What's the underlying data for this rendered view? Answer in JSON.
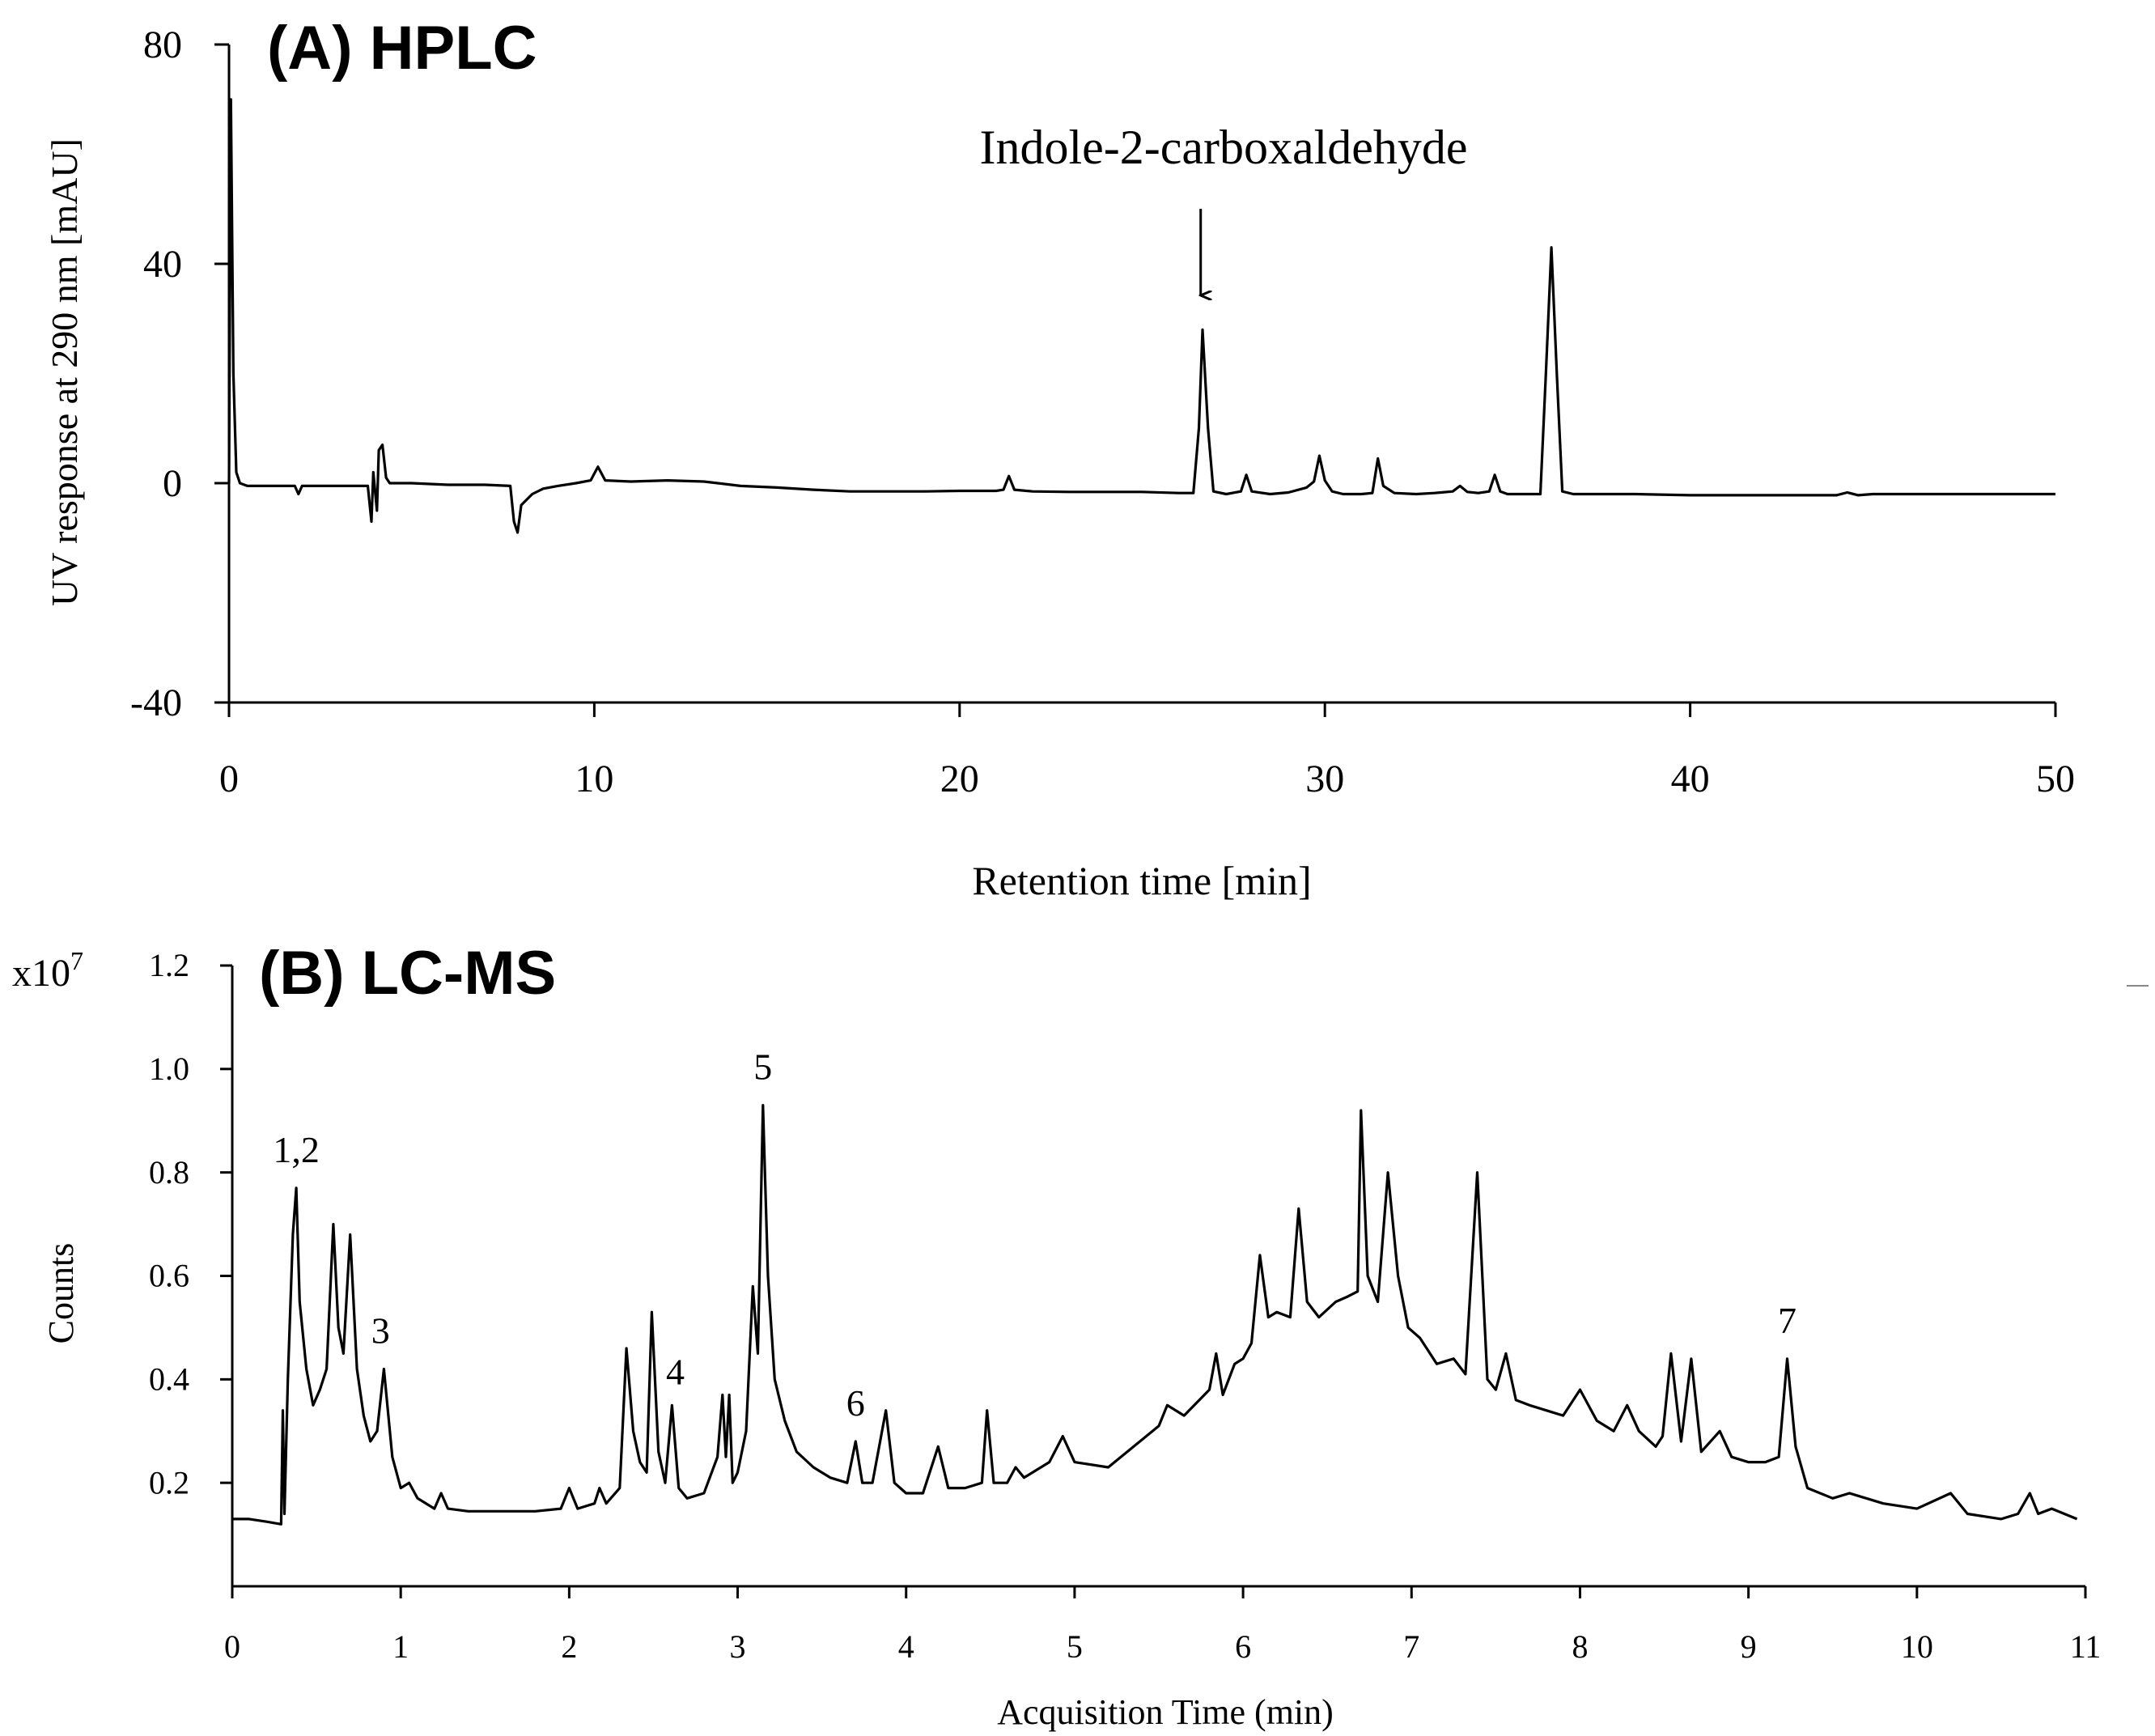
{
  "chart_data": [
    {
      "type": "line",
      "panel_title": "(A) HPLC",
      "xlabel": "Retention time [min]",
      "ylabel": "UV response at 290 nm [mAU]",
      "xlim": [
        0,
        50
      ],
      "ylim": [
        -40,
        80
      ],
      "x_ticks": [
        0,
        10,
        20,
        30,
        40,
        50
      ],
      "y_ticks": [
        80,
        40,
        0,
        -40
      ],
      "grid": false,
      "annotation": {
        "text": "Indole-2-carboxaldehyde",
        "x": 26.6,
        "arrow": true
      },
      "series": [
        {
          "x": [
            0,
            0.05,
            0.12,
            0.2,
            0.3,
            0.5,
            1,
            1.8,
            1.9,
            2.0,
            2.3,
            3,
            3.8,
            3.9,
            3.95,
            4.05,
            4.1,
            4.2,
            4.3,
            4.4,
            4.6,
            5,
            6,
            7,
            7.7,
            7.8,
            7.9,
            8.0,
            8.3,
            8.6,
            9,
            9.5,
            9.9,
            10.1,
            10.3,
            11,
            12,
            13,
            14,
            15,
            16,
            17,
            18,
            19,
            20,
            21,
            21.2,
            21.35,
            21.5,
            22,
            23,
            24,
            25,
            26,
            26.4,
            26.55,
            26.65,
            26.8,
            26.95,
            27.3,
            27.7,
            27.85,
            28.0,
            28.5,
            29,
            29.5,
            29.7,
            29.85,
            30.0,
            30.2,
            30.5,
            31,
            31.3,
            31.45,
            31.6,
            31.9,
            32.5,
            33,
            33.5,
            33.7,
            33.9,
            34.2,
            34.5,
            34.65,
            34.8,
            35,
            35.5,
            35.9,
            36.05,
            36.2,
            36.35,
            36.5,
            36.8,
            37.5,
            38.5,
            40,
            42,
            44,
            44.3,
            44.6,
            45,
            46,
            48,
            50
          ],
          "y": [
            0,
            70,
            20,
            2,
            0,
            -0.5,
            -0.5,
            -0.5,
            -2,
            -0.5,
            -0.5,
            -0.5,
            -0.5,
            -7,
            2,
            -5,
            6,
            7,
            1,
            0,
            0,
            0,
            -0.3,
            -0.3,
            -0.5,
            -7,
            -9,
            -4,
            -2,
            -1,
            -0.5,
            0,
            0.5,
            3,
            0.5,
            0.3,
            0.5,
            0.3,
            -0.5,
            -0.8,
            -1.2,
            -1.5,
            -1.5,
            -1.5,
            -1.4,
            -1.4,
            -1.2,
            1.3,
            -1.2,
            -1.5,
            -1.6,
            -1.6,
            -1.6,
            -1.8,
            -1.8,
            10,
            28,
            10,
            -1.5,
            -2,
            -1.5,
            1.5,
            -1.5,
            -2,
            -1.7,
            -0.8,
            0.3,
            5,
            0.5,
            -1.5,
            -2,
            -2,
            -1.8,
            4.5,
            -0.5,
            -1.8,
            -2,
            -1.8,
            -1.5,
            -0.5,
            -1.6,
            -1.8,
            -1.5,
            1.5,
            -1.5,
            -2,
            -2,
            -2,
            20,
            43,
            20,
            -1.5,
            -2,
            -2,
            -2,
            -2.2,
            -2.2,
            -2.2,
            -1.7,
            -2.2,
            -2,
            -2,
            -2,
            -2
          ]
        }
      ]
    },
    {
      "type": "line",
      "panel_title": "(B) LC-MS",
      "xlabel": "Acquisition Time (min)",
      "ylabel": "Counts",
      "y_multiplier": "x10",
      "y_multiplier_exp": "7",
      "xlim": [
        0,
        11
      ],
      "ylim": [
        0,
        1.2
      ],
      "x_ticks": [
        0,
        1,
        2,
        3,
        4,
        5,
        6,
        7,
        8,
        9,
        10,
        11
      ],
      "y_ticks": [
        0.2,
        0.4,
        0.6,
        0.8,
        1.0,
        1.2
      ],
      "y_tick_labels": [
        "0.2",
        "0.4",
        "0.6",
        "0.8",
        "1.0",
        "1.2"
      ],
      "grid": false,
      "peak_labels": [
        {
          "text": "1,2",
          "x": 0.38,
          "y": 0.82
        },
        {
          "text": "3",
          "x": 0.88,
          "y": 0.47
        },
        {
          "text": "4",
          "x": 2.63,
          "y": 0.39
        },
        {
          "text": "5",
          "x": 3.15,
          "y": 0.98
        },
        {
          "text": "6",
          "x": 3.7,
          "y": 0.33
        },
        {
          "text": "7",
          "x": 9.23,
          "y": 0.49
        }
      ],
      "series": [
        {
          "x": [
            0,
            0.1,
            0.2,
            0.29,
            0.3,
            0.31,
            0.33,
            0.36,
            0.38,
            0.4,
            0.44,
            0.48,
            0.52,
            0.56,
            0.6,
            0.63,
            0.66,
            0.7,
            0.74,
            0.78,
            0.82,
            0.86,
            0.9,
            0.95,
            1.0,
            1.05,
            1.1,
            1.2,
            1.24,
            1.28,
            1.4,
            1.6,
            1.8,
            1.95,
            2.0,
            2.05,
            2.15,
            2.18,
            2.22,
            2.3,
            2.34,
            2.38,
            2.42,
            2.46,
            2.49,
            2.53,
            2.57,
            2.61,
            2.65,
            2.7,
            2.8,
            2.88,
            2.91,
            2.93,
            2.95,
            2.97,
            3.0,
            3.05,
            3.09,
            3.12,
            3.15,
            3.18,
            3.22,
            3.28,
            3.35,
            3.45,
            3.55,
            3.65,
            3.7,
            3.74,
            3.8,
            3.88,
            3.93,
            4.0,
            4.1,
            4.19,
            4.25,
            4.35,
            4.45,
            4.48,
            4.52,
            4.6,
            4.65,
            4.7,
            4.75,
            4.85,
            4.93,
            5.0,
            5.2,
            5.35,
            5.5,
            5.55,
            5.65,
            5.8,
            5.84,
            5.88,
            5.95,
            6.0,
            6.05,
            6.1,
            6.15,
            6.2,
            6.28,
            6.33,
            6.38,
            6.45,
            6.55,
            6.62,
            6.68,
            6.7,
            6.74,
            6.8,
            6.86,
            6.92,
            6.98,
            7.05,
            7.15,
            7.25,
            7.32,
            7.39,
            7.45,
            7.5,
            7.56,
            7.62,
            7.7,
            7.8,
            7.9,
            8.0,
            8.1,
            8.2,
            8.28,
            8.35,
            8.45,
            8.49,
            8.54,
            8.6,
            8.66,
            8.72,
            8.83,
            8.9,
            9.0,
            9.1,
            9.18,
            9.23,
            9.28,
            9.35,
            9.5,
            9.6,
            9.8,
            10.0,
            10.2,
            10.3,
            10.5,
            10.6,
            10.67,
            10.72,
            10.8,
            10.95
          ],
          "y": [
            0.13,
            0.13,
            0.125,
            0.12,
            0.34,
            0.14,
            0.4,
            0.68,
            0.77,
            0.55,
            0.42,
            0.35,
            0.38,
            0.42,
            0.7,
            0.5,
            0.45,
            0.68,
            0.42,
            0.33,
            0.28,
            0.3,
            0.42,
            0.25,
            0.19,
            0.2,
            0.17,
            0.15,
            0.18,
            0.15,
            0.145,
            0.145,
            0.145,
            0.15,
            0.19,
            0.15,
            0.16,
            0.19,
            0.16,
            0.19,
            0.46,
            0.3,
            0.24,
            0.22,
            0.53,
            0.26,
            0.2,
            0.35,
            0.19,
            0.17,
            0.18,
            0.25,
            0.37,
            0.25,
            0.37,
            0.2,
            0.22,
            0.3,
            0.58,
            0.45,
            0.93,
            0.6,
            0.4,
            0.32,
            0.26,
            0.23,
            0.21,
            0.2,
            0.28,
            0.2,
            0.2,
            0.34,
            0.2,
            0.18,
            0.18,
            0.27,
            0.19,
            0.19,
            0.2,
            0.34,
            0.2,
            0.2,
            0.23,
            0.21,
            0.22,
            0.24,
            0.29,
            0.24,
            0.23,
            0.27,
            0.31,
            0.35,
            0.33,
            0.38,
            0.45,
            0.37,
            0.43,
            0.44,
            0.47,
            0.64,
            0.52,
            0.53,
            0.52,
            0.73,
            0.55,
            0.52,
            0.55,
            0.56,
            0.57,
            0.92,
            0.6,
            0.55,
            0.8,
            0.6,
            0.5,
            0.48,
            0.43,
            0.44,
            0.41,
            0.8,
            0.4,
            0.38,
            0.45,
            0.36,
            0.35,
            0.34,
            0.33,
            0.38,
            0.32,
            0.3,
            0.35,
            0.3,
            0.27,
            0.29,
            0.45,
            0.28,
            0.44,
            0.26,
            0.3,
            0.25,
            0.24,
            0.24,
            0.25,
            0.44,
            0.27,
            0.19,
            0.17,
            0.18,
            0.16,
            0.15,
            0.18,
            0.14,
            0.13,
            0.14,
            0.18,
            0.14,
            0.15,
            0.13
          ]
        }
      ]
    }
  ]
}
